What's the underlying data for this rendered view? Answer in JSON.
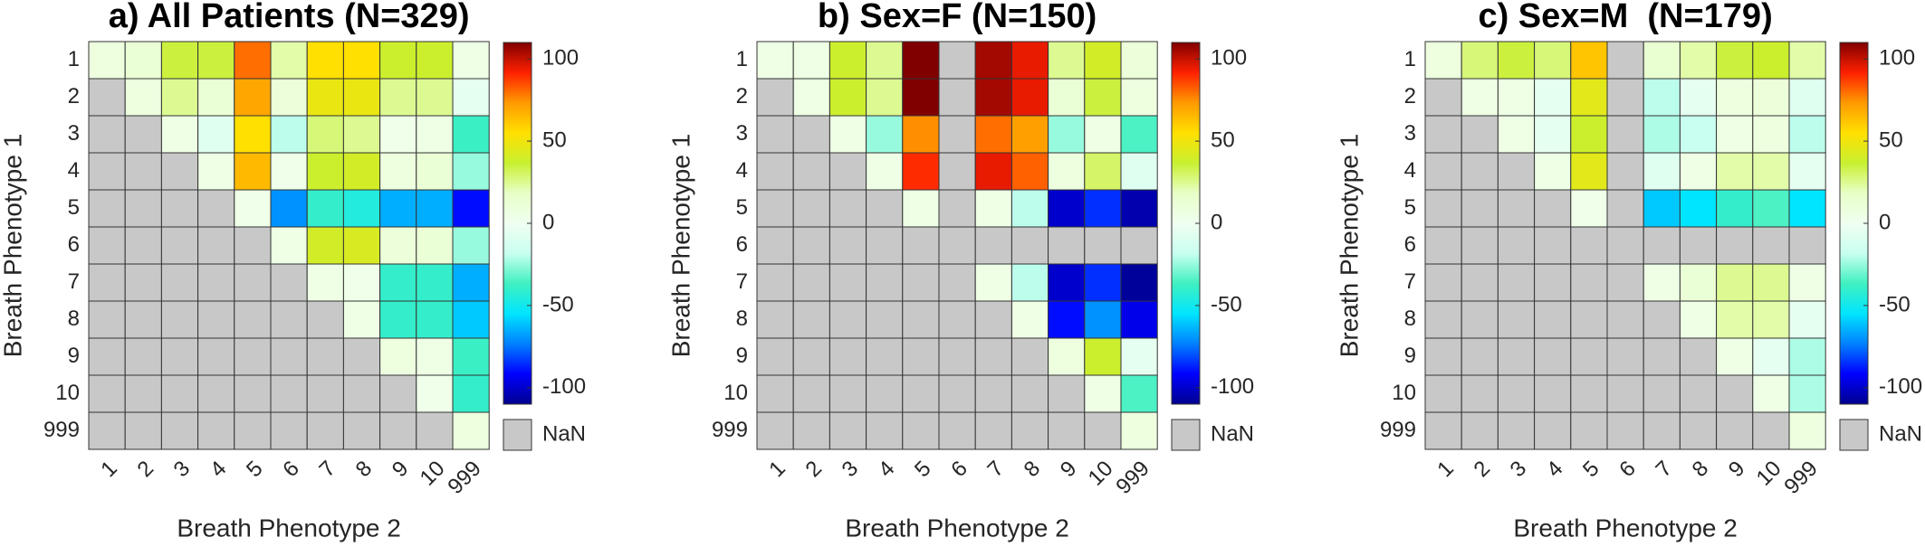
{
  "chart_data": [
    {
      "type": "heatmap",
      "title": "a) All Patients (N=329)",
      "x_label": "Breath Phenotype 2",
      "y_label": "Breath Phenotype 1",
      "x": [
        "1",
        "2",
        "3",
        "4",
        "5",
        "6",
        "7",
        "8",
        "9",
        "10",
        "999"
      ],
      "y": [
        "1",
        "2",
        "3",
        "4",
        "5",
        "6",
        "7",
        "8",
        "9",
        "10",
        "999"
      ],
      "values": [
        [
          8,
          12,
          35,
          35,
          80,
          22,
          55,
          55,
          38,
          38,
          5
        ],
        [
          null,
          8,
          25,
          12,
          70,
          10,
          48,
          48,
          25,
          25,
          -5
        ],
        [
          null,
          null,
          5,
          -8,
          55,
          -20,
          28,
          25,
          3,
          5,
          -38
        ],
        [
          null,
          null,
          null,
          5,
          65,
          3,
          38,
          40,
          8,
          12,
          -25
        ],
        [
          null,
          null,
          null,
          null,
          3,
          -70,
          -40,
          -45,
          -65,
          -65,
          -90
        ],
        [
          null,
          null,
          null,
          null,
          null,
          5,
          40,
          42,
          10,
          12,
          -25
        ],
        [
          null,
          null,
          null,
          null,
          null,
          null,
          5,
          3,
          -40,
          -40,
          -65
        ],
        [
          null,
          null,
          null,
          null,
          null,
          null,
          null,
          5,
          -40,
          -40,
          -60
        ],
        [
          null,
          null,
          null,
          null,
          null,
          null,
          null,
          null,
          8,
          5,
          -38
        ],
        [
          null,
          null,
          null,
          null,
          null,
          null,
          null,
          null,
          null,
          3,
          -40
        ],
        [
          null,
          null,
          null,
          null,
          null,
          null,
          null,
          null,
          null,
          null,
          8
        ]
      ],
      "zlim": [
        -110,
        110
      ],
      "colorbar_ticks": [
        100,
        50,
        0,
        -50,
        -100
      ],
      "nan_label": "NaN",
      "nan_color": "#c8c8c8",
      "colormap": [
        "#00008f",
        "#0000ff",
        "#0080ff",
        "#00e5ff",
        "#40f0c0",
        "#c8fff0",
        "#f0fff0",
        "#e8ffc8",
        "#c8f030",
        "#ffe000",
        "#ff9a00",
        "#ff2000",
        "#800000"
      ]
    },
    {
      "type": "heatmap",
      "title": "b) Sex=F (N=150)",
      "x_label": "Breath Phenotype 2",
      "y_label": "Breath Phenotype 1",
      "x": [
        "1",
        "2",
        "3",
        "4",
        "5",
        "6",
        "7",
        "8",
        "9",
        "10",
        "999"
      ],
      "y": [
        "1",
        "2",
        "3",
        "4",
        "5",
        "6",
        "7",
        "8",
        "9",
        "10",
        "999"
      ],
      "values": [
        [
          5,
          5,
          38,
          25,
          110,
          null,
          105,
          95,
          25,
          40,
          10
        ],
        [
          null,
          5,
          38,
          25,
          110,
          null,
          105,
          95,
          12,
          35,
          8
        ],
        [
          null,
          null,
          5,
          -25,
          75,
          null,
          80,
          72,
          -25,
          5,
          -35
        ],
        [
          null,
          null,
          null,
          5,
          90,
          null,
          95,
          82,
          8,
          30,
          -8
        ],
        [
          null,
          null,
          null,
          null,
          5,
          null,
          5,
          -20,
          -100,
          -85,
          -105
        ],
        [
          null,
          null,
          null,
          null,
          null,
          null,
          null,
          null,
          null,
          null,
          null
        ],
        [
          null,
          null,
          null,
          null,
          null,
          null,
          5,
          -20,
          -100,
          -85,
          -108
        ],
        [
          null,
          null,
          null,
          null,
          null,
          null,
          null,
          5,
          -90,
          -70,
          -95
        ],
        [
          null,
          null,
          null,
          null,
          null,
          null,
          null,
          null,
          8,
          38,
          -5
        ],
        [
          null,
          null,
          null,
          null,
          null,
          null,
          null,
          null,
          null,
          5,
          -35
        ],
        [
          null,
          null,
          null,
          null,
          null,
          null,
          null,
          null,
          null,
          null,
          8
        ]
      ],
      "zlim": [
        -110,
        110
      ],
      "colorbar_ticks": [
        100,
        50,
        0,
        -50,
        -100
      ],
      "nan_label": "NaN",
      "nan_color": "#c8c8c8",
      "colormap": [
        "#00008f",
        "#0000ff",
        "#0080ff",
        "#00e5ff",
        "#40f0c0",
        "#c8fff0",
        "#f0fff0",
        "#e8ffc8",
        "#c8f030",
        "#ffe000",
        "#ff9a00",
        "#ff2000",
        "#800000"
      ]
    },
    {
      "type": "heatmap",
      "title": "c) Sex=M  (N=179)",
      "x_label": "Breath Phenotype 2",
      "y_label": "Breath Phenotype 1",
      "x": [
        "1",
        "2",
        "3",
        "4",
        "5",
        "6",
        "7",
        "8",
        "9",
        "10",
        "999"
      ],
      "y": [
        "1",
        "2",
        "3",
        "4",
        "5",
        "6",
        "7",
        "8",
        "9",
        "10",
        "999"
      ],
      "values": [
        [
          8,
          28,
          35,
          28,
          62,
          null,
          14,
          22,
          35,
          38,
          22
        ],
        [
          null,
          5,
          5,
          -5,
          45,
          null,
          -20,
          -5,
          8,
          10,
          -8
        ],
        [
          null,
          null,
          5,
          -5,
          38,
          null,
          -22,
          -18,
          5,
          8,
          -20
        ],
        [
          null,
          null,
          null,
          5,
          45,
          null,
          -8,
          5,
          22,
          22,
          -5
        ],
        [
          null,
          null,
          null,
          null,
          3,
          null,
          -60,
          -55,
          -40,
          -35,
          -55
        ],
        [
          null,
          null,
          null,
          null,
          null,
          null,
          null,
          null,
          null,
          null,
          null
        ],
        [
          null,
          null,
          null,
          null,
          null,
          null,
          5,
          12,
          25,
          25,
          5
        ],
        [
          null,
          null,
          null,
          null,
          null,
          null,
          null,
          5,
          22,
          22,
          -5
        ],
        [
          null,
          null,
          null,
          null,
          null,
          null,
          null,
          null,
          5,
          -5,
          -22
        ],
        [
          null,
          null,
          null,
          null,
          null,
          null,
          null,
          null,
          null,
          5,
          -22
        ],
        [
          null,
          null,
          null,
          null,
          null,
          null,
          null,
          null,
          null,
          null,
          8
        ]
      ],
      "zlim": [
        -110,
        110
      ],
      "colorbar_ticks": [
        100,
        50,
        0,
        -50,
        -100
      ],
      "nan_label": "NaN",
      "nan_color": "#c8c8c8",
      "colormap": [
        "#00008f",
        "#0000ff",
        "#0080ff",
        "#00e5ff",
        "#40f0c0",
        "#c8fff0",
        "#f0fff0",
        "#e8ffc8",
        "#c8f030",
        "#ffe000",
        "#ff9a00",
        "#ff2000",
        "#800000"
      ]
    }
  ]
}
